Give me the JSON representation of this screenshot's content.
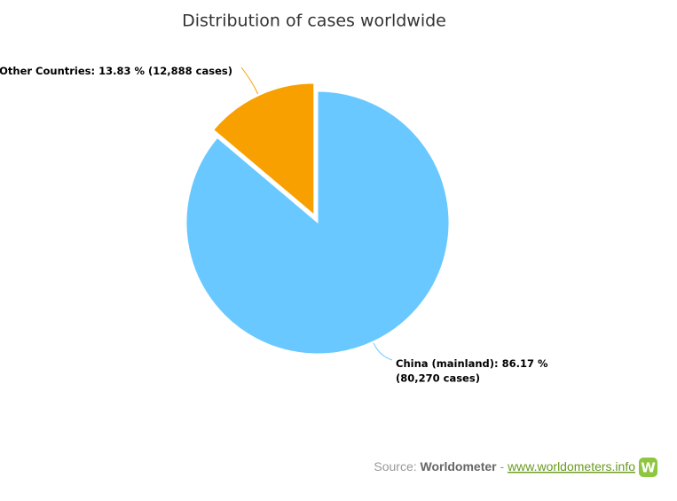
{
  "chart_data": {
    "type": "pie",
    "title": "Distribution of cases worldwide",
    "categories": [
      "China (mainland):",
      "Other Countries:"
    ],
    "values": [
      86.17,
      13.83
    ],
    "value_labels": [
      "86.17 %",
      "13.83 %"
    ],
    "cases": [
      80270,
      12888
    ],
    "case_labels": [
      "(80,270 cases)",
      "(12,888 cases)"
    ],
    "colors": [
      "#69c8ff",
      "#f7a000"
    ],
    "exploded": [
      false,
      true
    ]
  },
  "source": {
    "prefix": "Source:",
    "name": "Worldometer",
    "separator": "-",
    "url": "www.worldometers.info",
    "logo": "W"
  }
}
